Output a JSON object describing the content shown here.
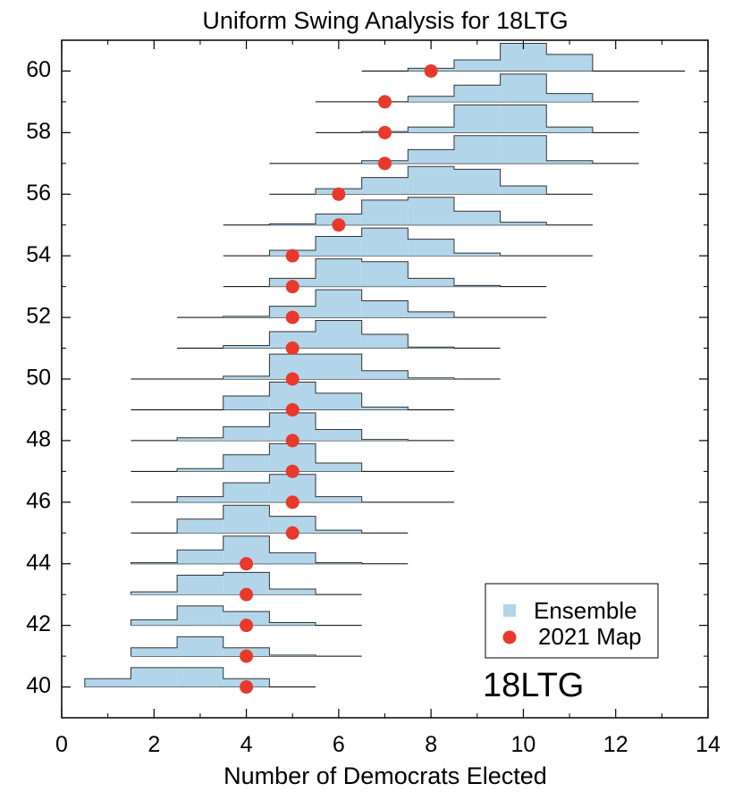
{
  "chart_data": {
    "type": "histogram-ridgeline",
    "title": "Uniform Swing Analysis for 18LTG",
    "xlabel": "Number of Democrats Elected",
    "ylabel": "",
    "xlim": [
      0,
      14
    ],
    "ylim": [
      39,
      61
    ],
    "x_ticks": [
      "0",
      "2",
      "4",
      "6",
      "8",
      "10",
      "12",
      "14"
    ],
    "y_ticks": [
      "40",
      "42",
      "44",
      "46",
      "48",
      "50",
      "52",
      "54",
      "56",
      "58",
      "60"
    ],
    "annotation": "18LTG",
    "legend": {
      "placement": "lower-right",
      "entries": [
        "Ensemble",
        "2021 Map"
      ]
    },
    "colors": {
      "ensemble": "#b3d5e9",
      "map": "#e8392b",
      "outline": "#333333"
    },
    "series": [
      {
        "name": "Ensemble",
        "y": 40,
        "range": [
          0.5,
          5.5
        ],
        "bins": [
          [
            1,
            0.15
          ],
          [
            2,
            0.35
          ],
          [
            3,
            0.35
          ],
          [
            4,
            0.15
          ]
        ]
      },
      {
        "name": "Ensemble",
        "y": 41,
        "range": [
          1.5,
          6.5
        ],
        "bins": [
          [
            2,
            0.15
          ],
          [
            3,
            0.35
          ],
          [
            4,
            0.15
          ],
          [
            5,
            0.02
          ]
        ]
      },
      {
        "name": "Ensemble",
        "y": 42,
        "range": [
          1.5,
          6.5
        ],
        "bins": [
          [
            2,
            0.1
          ],
          [
            3,
            0.35
          ],
          [
            4,
            0.25
          ],
          [
            5,
            0.05
          ]
        ]
      },
      {
        "name": "Ensemble",
        "y": 43,
        "range": [
          1.5,
          6.5
        ],
        "bins": [
          [
            2,
            0.05
          ],
          [
            3,
            0.35
          ],
          [
            4,
            0.4
          ],
          [
            5,
            0.1
          ]
        ]
      },
      {
        "name": "Ensemble",
        "y": 44,
        "range": [
          1.5,
          7.5
        ],
        "bins": [
          [
            2,
            0.02
          ],
          [
            3,
            0.25
          ],
          [
            4,
            0.5
          ],
          [
            5,
            0.2
          ],
          [
            6,
            0.02
          ]
        ]
      },
      {
        "name": "Ensemble",
        "y": 45,
        "range": [
          1.5,
          7.5
        ],
        "bins": [
          [
            3,
            0.25
          ],
          [
            4,
            0.5
          ],
          [
            5,
            0.3
          ],
          [
            6,
            0.05
          ]
        ]
      },
      {
        "name": "Ensemble",
        "y": 46,
        "range": [
          1.5,
          8.5
        ],
        "bins": [
          [
            3,
            0.1
          ],
          [
            4,
            0.35
          ],
          [
            5,
            0.5
          ],
          [
            6,
            0.1
          ]
        ]
      },
      {
        "name": "Ensemble",
        "y": 47,
        "range": [
          1.5,
          8.5
        ],
        "bins": [
          [
            3,
            0.05
          ],
          [
            4,
            0.3
          ],
          [
            5,
            0.5
          ],
          [
            6,
            0.15
          ]
        ]
      },
      {
        "name": "Ensemble",
        "y": 48,
        "range": [
          1.5,
          8.5
        ],
        "bins": [
          [
            3,
            0.05
          ],
          [
            4,
            0.25
          ],
          [
            5,
            0.5
          ],
          [
            6,
            0.2
          ],
          [
            7,
            0.02
          ]
        ]
      },
      {
        "name": "Ensemble",
        "y": 49,
        "range": [
          1.5,
          8.5
        ],
        "bins": [
          [
            4,
            0.25
          ],
          [
            5,
            0.5
          ],
          [
            6,
            0.3
          ],
          [
            7,
            0.05
          ]
        ]
      },
      {
        "name": "Ensemble",
        "y": 50,
        "range": [
          1.5,
          9.5
        ],
        "bins": [
          [
            4,
            0.05
          ],
          [
            5,
            0.45
          ],
          [
            6,
            0.45
          ],
          [
            7,
            0.15
          ],
          [
            8,
            0.02
          ]
        ]
      },
      {
        "name": "Ensemble",
        "y": 51,
        "range": [
          2.5,
          9.5
        ],
        "bins": [
          [
            4,
            0.05
          ],
          [
            5,
            0.3
          ],
          [
            6,
            0.5
          ],
          [
            7,
            0.25
          ],
          [
            8,
            0.02
          ]
        ]
      },
      {
        "name": "Ensemble",
        "y": 52,
        "range": [
          2.5,
          10.5
        ],
        "bins": [
          [
            4,
            0.02
          ],
          [
            5,
            0.2
          ],
          [
            6,
            0.5
          ],
          [
            7,
            0.3
          ],
          [
            8,
            0.1
          ]
        ]
      },
      {
        "name": "Ensemble",
        "y": 53,
        "range": [
          3.5,
          10.5
        ],
        "bins": [
          [
            5,
            0.15
          ],
          [
            6,
            0.5
          ],
          [
            7,
            0.45
          ],
          [
            8,
            0.15
          ],
          [
            9,
            0.02
          ]
        ]
      },
      {
        "name": "Ensemble",
        "y": 54,
        "range": [
          3.5,
          11.5
        ],
        "bins": [
          [
            5,
            0.1
          ],
          [
            6,
            0.35
          ],
          [
            7,
            0.5
          ],
          [
            8,
            0.3
          ],
          [
            9,
            0.05
          ]
        ]
      },
      {
        "name": "Ensemble",
        "y": 55,
        "range": [
          3.5,
          11.5
        ],
        "bins": [
          [
            5,
            0.02
          ],
          [
            6,
            0.2
          ],
          [
            7,
            0.45
          ],
          [
            8,
            0.5
          ],
          [
            9,
            0.25
          ],
          [
            10,
            0.05
          ]
        ]
      },
      {
        "name": "Ensemble",
        "y": 56,
        "range": [
          4.5,
          11.5
        ],
        "bins": [
          [
            6,
            0.1
          ],
          [
            7,
            0.3
          ],
          [
            8,
            0.5
          ],
          [
            9,
            0.45
          ],
          [
            10,
            0.15
          ]
        ]
      },
      {
        "name": "Ensemble",
        "y": 57,
        "range": [
          4.5,
          12.5
        ],
        "bins": [
          [
            7,
            0.05
          ],
          [
            8,
            0.25
          ],
          [
            9,
            0.5
          ],
          [
            10,
            0.5
          ],
          [
            11,
            0.05
          ]
        ]
      },
      {
        "name": "Ensemble",
        "y": 58,
        "range": [
          5.5,
          12.5
        ],
        "bins": [
          [
            7,
            0.02
          ],
          [
            8,
            0.1
          ],
          [
            9,
            0.5
          ],
          [
            10,
            0.5
          ],
          [
            11,
            0.1
          ]
        ]
      },
      {
        "name": "Ensemble",
        "y": 59,
        "range": [
          5.5,
          12.5
        ],
        "bins": [
          [
            8,
            0.1
          ],
          [
            9,
            0.3
          ],
          [
            10,
            0.5
          ],
          [
            11,
            0.15
          ]
        ]
      },
      {
        "name": "Ensemble",
        "y": 60,
        "range": [
          6.5,
          13.5
        ],
        "bins": [
          [
            8,
            0.05
          ],
          [
            9,
            0.2
          ],
          [
            10,
            0.5
          ],
          [
            11,
            0.3
          ]
        ]
      }
    ],
    "map_2021": [
      {
        "y": 40,
        "x": 4
      },
      {
        "y": 41,
        "x": 4
      },
      {
        "y": 42,
        "x": 4
      },
      {
        "y": 43,
        "x": 4
      },
      {
        "y": 44,
        "x": 4
      },
      {
        "y": 45,
        "x": 5
      },
      {
        "y": 46,
        "x": 5
      },
      {
        "y": 47,
        "x": 5
      },
      {
        "y": 48,
        "x": 5
      },
      {
        "y": 49,
        "x": 5
      },
      {
        "y": 50,
        "x": 5
      },
      {
        "y": 51,
        "x": 5
      },
      {
        "y": 52,
        "x": 5
      },
      {
        "y": 53,
        "x": 5
      },
      {
        "y": 54,
        "x": 5
      },
      {
        "y": 55,
        "x": 6
      },
      {
        "y": 56,
        "x": 6
      },
      {
        "y": 57,
        "x": 7
      },
      {
        "y": 58,
        "x": 7
      },
      {
        "y": 59,
        "x": 7
      },
      {
        "y": 60,
        "x": 8
      }
    ]
  }
}
